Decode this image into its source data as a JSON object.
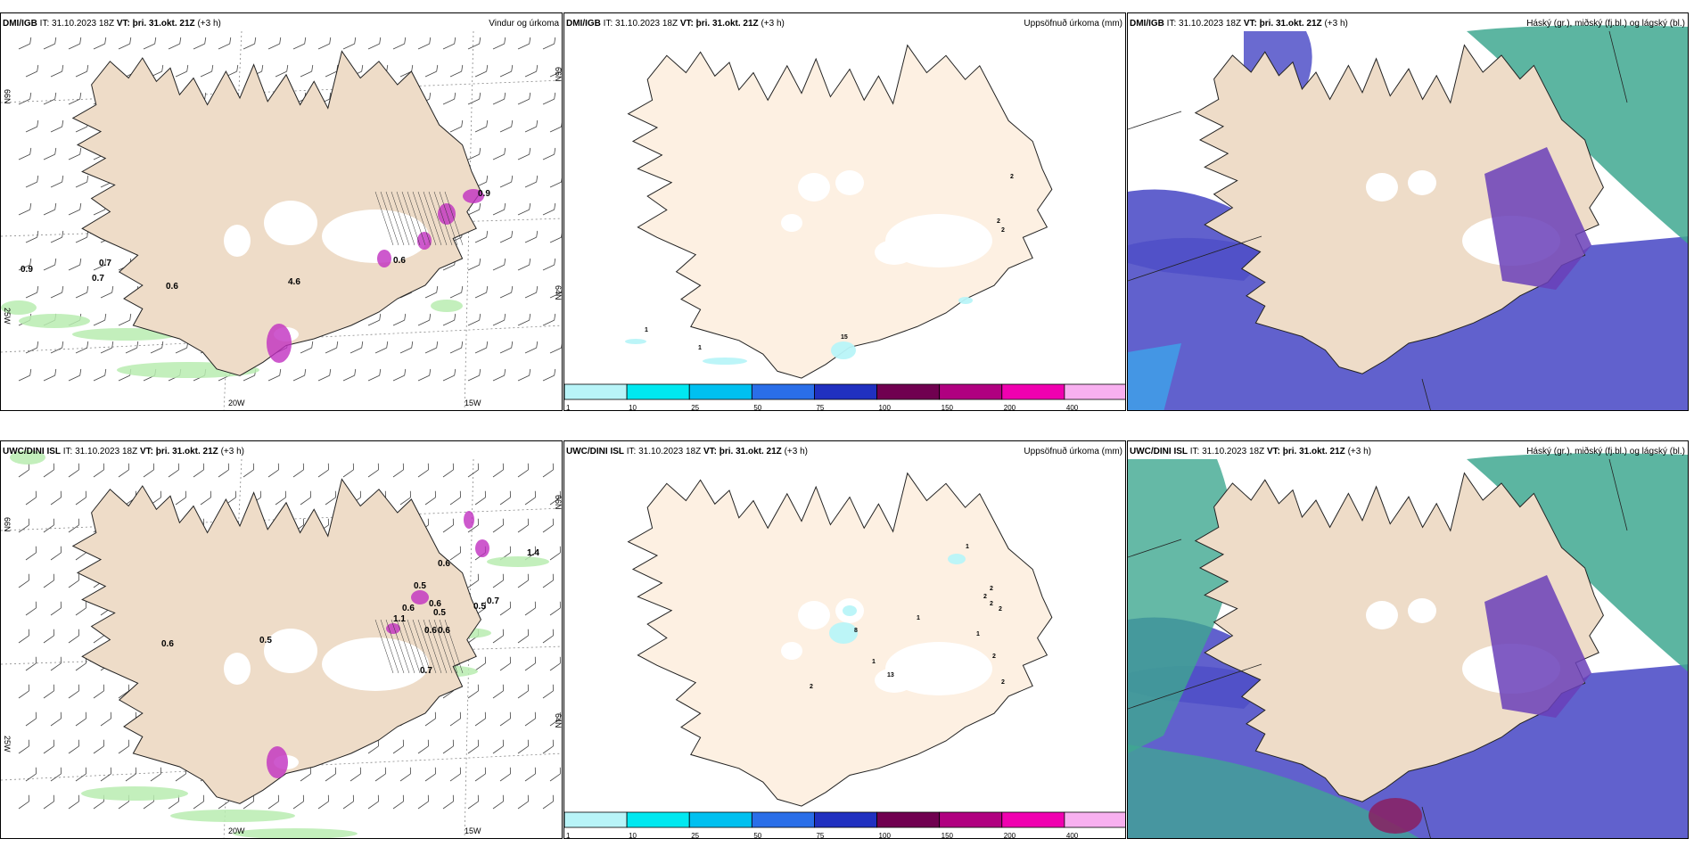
{
  "rows": [
    {
      "model": "DMI/IGB",
      "issue_prefix": "IT:",
      "issue_time": "31.10.2023 18Z",
      "valid_prefix": "VT:",
      "valid_time": "þri. 31.okt. 21Z",
      "lead": "(+3 h)"
    },
    {
      "model": "UWC/DINI ISL",
      "issue_prefix": "IT:",
      "issue_time": "31.10.2023 18Z",
      "valid_prefix": "VT:",
      "valid_time": "þri. 31.okt. 21Z",
      "lead": "(+3 h)"
    }
  ],
  "panel_titles": {
    "wind": "Vindur og úrkoma",
    "precip": "Uppsöfnuð úrkoma (mm)",
    "cloud": "Háský (gr.), miðský (fj.bl.) og lágský (bl.)"
  },
  "grid_labels": {
    "lat66": "66N",
    "lat64": "64N",
    "lon25": "25W",
    "lon20": "20W",
    "lon15": "15W"
  },
  "precip_colorbar": {
    "ticks": [
      "1",
      "10",
      "25",
      "50",
      "75",
      "100",
      "150",
      "200",
      "400"
    ],
    "colors": [
      "#b8f4f8",
      "#00e8f0",
      "#00c0f0",
      "#2a6ee8",
      "#2030c0",
      "#700050",
      "#b00080",
      "#f000b0",
      "#f8b0f0"
    ]
  },
  "wind_values": {
    "top": [
      "0.9",
      "0.7",
      "0.7",
      "0.6",
      "0.6",
      "4.6",
      "0.9"
    ],
    "bottom": [
      "0.6",
      "0.5",
      "1.1",
      "0.6",
      "0.5",
      "0.6",
      "0.6",
      "0.5",
      "0.7",
      "1.4",
      "0.7",
      "0.6",
      "0.6",
      "0.5"
    ]
  },
  "precip_values": {
    "top": [
      "2",
      "2",
      "2",
      "1",
      "1",
      "15"
    ],
    "bottom": [
      "1",
      "2",
      "2",
      "2",
      "2",
      "1",
      "2",
      "1",
      "2",
      "1",
      "2",
      "13",
      "8"
    ]
  },
  "colors": {
    "land": "#eedcc8",
    "land_light": "#fdf0e2",
    "glacier": "#ffffff",
    "precip_green": "#b8ecb0",
    "precip_magenta": "#c030c0",
    "cloud_high": "#3fa890",
    "cloud_mid": "#5050c8",
    "cloud_low": "#6a3fb8"
  }
}
